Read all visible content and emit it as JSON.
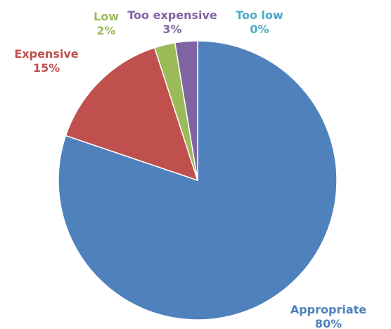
{
  "chart_data": {
    "type": "pie",
    "title": "",
    "slices": [
      {
        "label": "Appropriate",
        "percent_label": "80%",
        "value": 80.2,
        "color": "#4F81BD"
      },
      {
        "label": "Expensive",
        "percent_label": "15%",
        "value": 14.8,
        "color": "#C0504D"
      },
      {
        "label": "Low",
        "percent_label": "2%",
        "value": 2.4,
        "color": "#9BBB59"
      },
      {
        "label": "Too expensive",
        "percent_label": "3%",
        "value": 2.6,
        "color": "#8064A2"
      },
      {
        "label": "Too low",
        "percent_label": "0%",
        "value": 0.0,
        "color": "#4BACC6"
      }
    ],
    "legend": "none",
    "data_labels": "outside, category name and percentage"
  }
}
